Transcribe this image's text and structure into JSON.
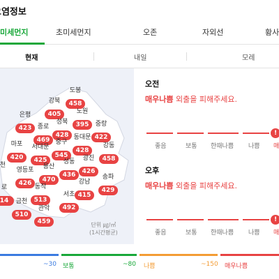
{
  "page_title": "오염정보",
  "main_tabs": [
    "미세먼지",
    "초미세먼지",
    "오존",
    "자외선",
    "황사"
  ],
  "sub_tabs": [
    "현재",
    "내일",
    "모레"
  ],
  "map": {
    "districts": [
      {
        "name": "도봉",
        "value": "458"
      },
      {
        "name": "강북",
        "value": "405"
      },
      {
        "name": "노원",
        "value": "395"
      },
      {
        "name": "은평",
        "value": "423"
      },
      {
        "name": "종로",
        "value": "469"
      },
      {
        "name": "성북",
        "value": "428"
      },
      {
        "name": "중랑",
        "value": "422"
      },
      {
        "name": "마포",
        "value": "420"
      },
      {
        "name": "서대문",
        "value": "425"
      },
      {
        "name": "중구",
        "value": "545"
      },
      {
        "name": "동대문",
        "value": "428"
      },
      {
        "name": "강동",
        "value": "458"
      },
      {
        "name": "천",
        "value": ""
      },
      {
        "name": "영등포",
        "value": "426"
      },
      {
        "name": "용산",
        "value": "470"
      },
      {
        "name": "성동",
        "value": "436"
      },
      {
        "name": "광진",
        "value": "426"
      },
      {
        "name": "로",
        "value": "14"
      },
      {
        "name": "동작",
        "value": "513"
      },
      {
        "name": "강남",
        "value": "415"
      },
      {
        "name": "송파",
        "value": "429"
      },
      {
        "name": "금천",
        "value": "510"
      },
      {
        "name": "서초",
        "value": "492"
      },
      {
        "name": "관악",
        "value": "459"
      }
    ],
    "unit_line1": "단위 ㎍/㎥",
    "unit_line2": "(1시간평균)"
  },
  "forecast": {
    "am": {
      "label": "오전",
      "level": "매우나쁨",
      "message": "외출을 피해주세요."
    },
    "pm": {
      "label": "오후",
      "level": "매우나쁨",
      "message": "외출을 피해주세요."
    },
    "scale_labels": [
      "좋음",
      "보통",
      "한때나쁨",
      "나쁨",
      "매우"
    ]
  },
  "legend": [
    {
      "range": "~30",
      "label": "",
      "color": "#3b7be0"
    },
    {
      "range": "~80",
      "label": "보통",
      "color": "#19a83a"
    },
    {
      "range": "~150",
      "label": "나쁨",
      "color": "#f39c34"
    },
    {
      "range": "",
      "label": "매우나쁨",
      "color": "#e84343"
    }
  ],
  "colors": {
    "accent": "#19a83a",
    "very_bad": "#e84343",
    "map_bg": "#eef1f8"
  }
}
